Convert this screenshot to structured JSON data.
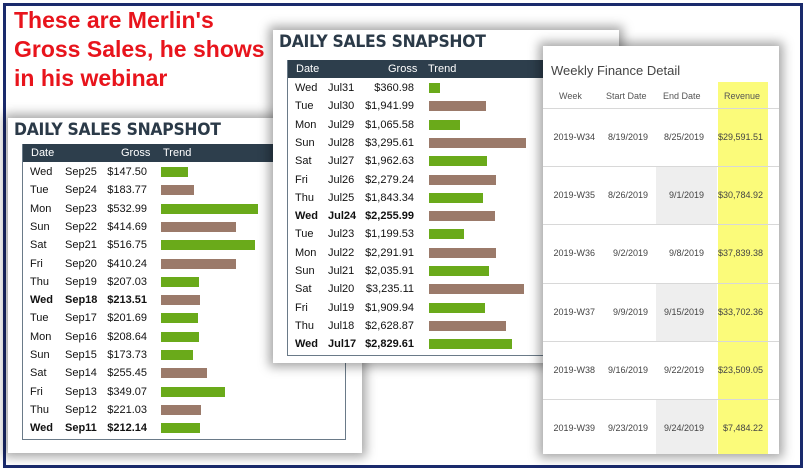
{
  "caption": [
    "These are Merlin's",
    "Gross Sales, he shows",
    "in his webinar"
  ],
  "colors": {
    "bar_up": "#6aaa1a",
    "bar_down": "#9b7a6a",
    "header_bg": "#2d3e4c",
    "revenue_bg": "#fbfb7a"
  },
  "panel_left": {
    "title": "DAILY SALES SNAPSHOT",
    "headers": {
      "date": "Date",
      "gross": "Gross",
      "trend": "Trend"
    },
    "rows": [
      {
        "day": "Wed",
        "date": "Sep25",
        "gross": "$147.50",
        "value": 147.5,
        "up": true,
        "bold": false
      },
      {
        "day": "Tue",
        "date": "Sep24",
        "gross": "$183.77",
        "value": 183.77,
        "up": false,
        "bold": false
      },
      {
        "day": "Mon",
        "date": "Sep23",
        "gross": "$532.99",
        "value": 532.99,
        "up": true,
        "bold": false
      },
      {
        "day": "Sun",
        "date": "Sep22",
        "gross": "$414.69",
        "value": 414.69,
        "up": false,
        "bold": false
      },
      {
        "day": "Sat",
        "date": "Sep21",
        "gross": "$516.75",
        "value": 516.75,
        "up": true,
        "bold": false
      },
      {
        "day": "Fri",
        "date": "Sep20",
        "gross": "$410.24",
        "value": 410.24,
        "up": false,
        "bold": false
      },
      {
        "day": "Thu",
        "date": "Sep19",
        "gross": "$207.03",
        "value": 207.03,
        "up": true,
        "bold": false
      },
      {
        "day": "Wed",
        "date": "Sep18",
        "gross": "$213.51",
        "value": 213.51,
        "up": false,
        "bold": true
      },
      {
        "day": "Tue",
        "date": "Sep17",
        "gross": "$201.69",
        "value": 201.69,
        "up": true,
        "bold": false
      },
      {
        "day": "Mon",
        "date": "Sep16",
        "gross": "$208.64",
        "value": 208.64,
        "up": true,
        "bold": false
      },
      {
        "day": "Sun",
        "date": "Sep15",
        "gross": "$173.73",
        "value": 173.73,
        "up": true,
        "bold": false
      },
      {
        "day": "Sat",
        "date": "Sep14",
        "gross": "$255.45",
        "value": 255.45,
        "up": false,
        "bold": false
      },
      {
        "day": "Fri",
        "date": "Sep13",
        "gross": "$349.07",
        "value": 349.07,
        "up": true,
        "bold": false
      },
      {
        "day": "Thu",
        "date": "Sep12",
        "gross": "$221.03",
        "value": 221.03,
        "up": false,
        "bold": false
      },
      {
        "day": "Wed",
        "date": "Sep11",
        "gross": "$212.14",
        "value": 212.14,
        "up": true,
        "bold": true
      }
    ]
  },
  "panel_mid": {
    "title": "DAILY SALES SNAPSHOT",
    "headers": {
      "date": "Date",
      "gross": "Gross",
      "trend": "Trend"
    },
    "rows": [
      {
        "day": "Wed",
        "date": "Jul31",
        "gross": "$360.98",
        "value": 360.98,
        "up": true,
        "bold": false
      },
      {
        "day": "Tue",
        "date": "Jul30",
        "gross": "$1,941.99",
        "value": 1941.99,
        "up": false,
        "bold": false
      },
      {
        "day": "Mon",
        "date": "Jul29",
        "gross": "$1,065.58",
        "value": 1065.58,
        "up": true,
        "bold": false
      },
      {
        "day": "Sun",
        "date": "Jul28",
        "gross": "$3,295.61",
        "value": 3295.61,
        "up": false,
        "bold": false
      },
      {
        "day": "Sat",
        "date": "Jul27",
        "gross": "$1,962.63",
        "value": 1962.63,
        "up": true,
        "bold": false
      },
      {
        "day": "Fri",
        "date": "Jul26",
        "gross": "$2,279.24",
        "value": 2279.24,
        "up": false,
        "bold": false
      },
      {
        "day": "Thu",
        "date": "Jul25",
        "gross": "$1,843.34",
        "value": 1843.34,
        "up": true,
        "bold": false
      },
      {
        "day": "Wed",
        "date": "Jul24",
        "gross": "$2,255.99",
        "value": 2255.99,
        "up": false,
        "bold": true
      },
      {
        "day": "Tue",
        "date": "Jul23",
        "gross": "$1,199.53",
        "value": 1199.53,
        "up": true,
        "bold": false
      },
      {
        "day": "Mon",
        "date": "Jul22",
        "gross": "$2,291.91",
        "value": 2291.91,
        "up": false,
        "bold": false
      },
      {
        "day": "Sun",
        "date": "Jul21",
        "gross": "$2,035.91",
        "value": 2035.91,
        "up": true,
        "bold": false
      },
      {
        "day": "Sat",
        "date": "Jul20",
        "gross": "$3,235.11",
        "value": 3235.11,
        "up": false,
        "bold": false
      },
      {
        "day": "Fri",
        "date": "Jul19",
        "gross": "$1,909.94",
        "value": 1909.94,
        "up": true,
        "bold": false
      },
      {
        "day": "Thu",
        "date": "Jul18",
        "gross": "$2,628.87",
        "value": 2628.87,
        "up": false,
        "bold": false
      },
      {
        "day": "Wed",
        "date": "Jul17",
        "gross": "$2,829.61",
        "value": 2829.61,
        "up": true,
        "bold": true
      }
    ]
  },
  "panel_right": {
    "title": "Weekly Finance Detail",
    "headers": {
      "week": "Week",
      "start": "Start Date",
      "end": "End Date",
      "revenue": "Revenue"
    },
    "rows": [
      {
        "week": "2019-W34",
        "start": "8/19/2019",
        "end": "8/25/2019",
        "revenue": "$29,591.51"
      },
      {
        "week": "2019-W35",
        "start": "8/26/2019",
        "end": "9/1/2019",
        "revenue": "$30,784.92"
      },
      {
        "week": "2019-W36",
        "start": "9/2/2019",
        "end": "9/8/2019",
        "revenue": "$37,839.38"
      },
      {
        "week": "2019-W37",
        "start": "9/9/2019",
        "end": "9/15/2019",
        "revenue": "$33,702.36"
      },
      {
        "week": "2019-W38",
        "start": "9/16/2019",
        "end": "9/22/2019",
        "revenue": "$23,509.05"
      },
      {
        "week": "2019-W39",
        "start": "9/23/2019",
        "end": "9/24/2019",
        "revenue": "$7,484.22"
      }
    ]
  }
}
